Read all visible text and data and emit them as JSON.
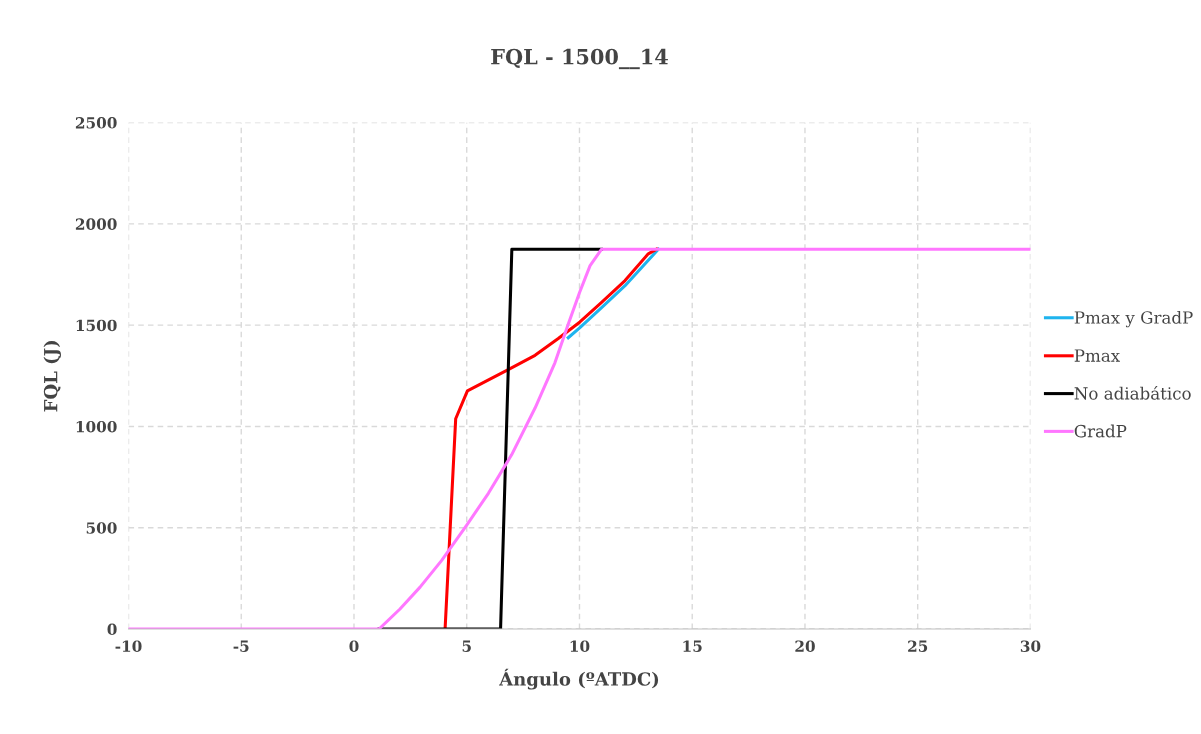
{
  "chart_data": {
    "type": "line",
    "title": "FQL - 1500__14",
    "xlabel": "Ángulo (ºATDC)",
    "ylabel": "FQL (J)",
    "xlim": [
      -10,
      30
    ],
    "xticks": [
      -10,
      -5,
      0,
      5,
      10,
      15,
      20,
      25,
      30
    ],
    "ylim": [
      0,
      2500
    ],
    "yticks": [
      0,
      500,
      1000,
      1500,
      2000,
      2500
    ],
    "grid": true,
    "legend": "right",
    "marker": "none",
    "line_style": "solid",
    "series": [
      {
        "name": "Pmax y GradP",
        "color": "#1fb4ee",
        "x": [
          9.5,
          10.02,
          10.98,
          12.02,
          12.9,
          13.5
        ],
        "values": [
          1438,
          1488,
          1587,
          1695,
          1802,
          1875
        ]
      },
      {
        "name": "Pmax",
        "color": "#ff0000",
        "x": [
          4.04,
          4.51,
          5.03,
          6.84,
          8.03,
          9.06,
          10.02,
          10.98,
          12.02,
          13.05,
          13.42
        ],
        "values": [
          0,
          1038,
          1176,
          1281,
          1351,
          1434,
          1516,
          1612,
          1720,
          1852,
          1875
        ]
      },
      {
        "name": "No adiabático",
        "color": "#000000",
        "x": [
          1.11,
          6.5,
          7.0,
          10.98
        ],
        "values": [
          0,
          0,
          1875,
          1875
        ]
      },
      {
        "name": "GradP",
        "color": "#ff77ff",
        "x": [
          -10,
          1.11,
          2.04,
          2.93,
          3.89,
          5.0,
          5.96,
          6.99,
          8.03,
          8.91,
          9.5,
          10.0,
          10.47,
          10.98,
          30
        ],
        "values": [
          0,
          0,
          99,
          207,
          339,
          513,
          670,
          860,
          1091,
          1314,
          1505,
          1660,
          1794,
          1875,
          1875
        ]
      }
    ]
  }
}
